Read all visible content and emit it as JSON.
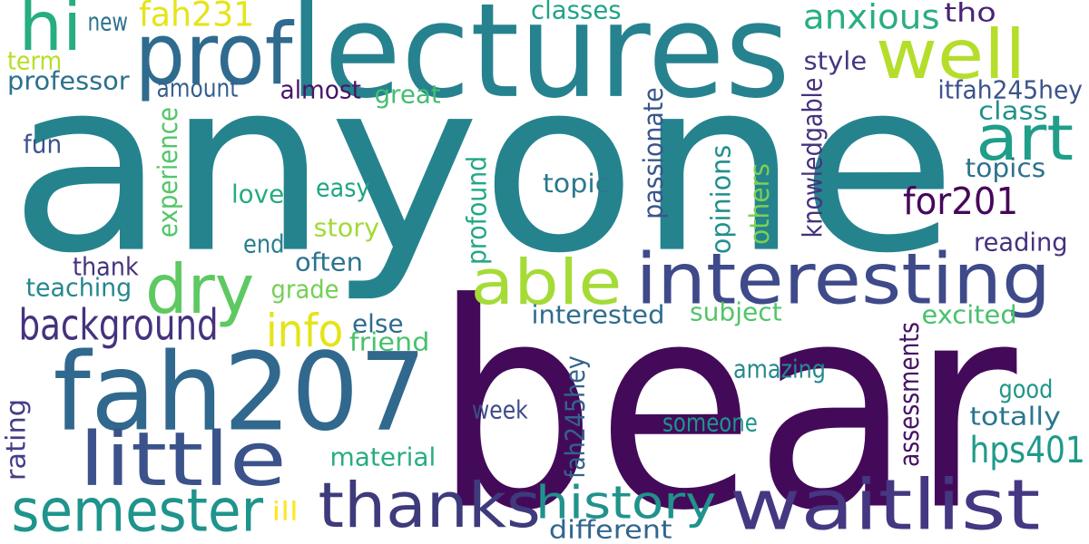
{
  "words": [
    {
      "text": "anyone",
      "color": "#25838e"
    },
    {
      "text": "bear",
      "color": "#440a5a"
    },
    {
      "text": "lectures",
      "color": "#26828e"
    },
    {
      "text": "fah207",
      "color": "#31688e"
    },
    {
      "text": "interesting",
      "color": "#3e4a89"
    },
    {
      "text": "prof",
      "color": "#2f6b8e"
    },
    {
      "text": "waitlist",
      "color": "#453781"
    },
    {
      "text": "thanks",
      "color": "#3e3b7c"
    },
    {
      "text": "little",
      "color": "#3b528b"
    },
    {
      "text": "semester",
      "color": "#1f948c"
    },
    {
      "text": "dry",
      "color": "#5ec962"
    },
    {
      "text": "well",
      "color": "#b5de2b"
    },
    {
      "text": "hi",
      "color": "#27ad81"
    },
    {
      "text": "able",
      "color": "#a5db36"
    },
    {
      "text": "art",
      "color": "#1f9e89"
    },
    {
      "text": "history",
      "color": "#20928c"
    },
    {
      "text": "background",
      "color": "#46327e"
    },
    {
      "text": "anxious",
      "color": "#29af7f"
    },
    {
      "text": "hps401",
      "color": "#1f9a8a"
    },
    {
      "text": "for201",
      "color": "#46075a"
    },
    {
      "text": "info",
      "color": "#e4e419"
    },
    {
      "text": "fah231",
      "color": "#e5e419"
    },
    {
      "text": "topics",
      "color": "#2c728e"
    },
    {
      "text": "itfah245hey",
      "color": "#3b528b"
    },
    {
      "text": "class",
      "color": "#21918c"
    },
    {
      "text": "topic",
      "color": "#2a788e"
    },
    {
      "text": "easy",
      "color": "#21a585"
    },
    {
      "text": "love",
      "color": "#25ab82"
    },
    {
      "text": "story",
      "color": "#a2da37"
    },
    {
      "text": "end",
      "color": "#277f8e"
    },
    {
      "text": "often",
      "color": "#2c738e"
    },
    {
      "text": "thank",
      "color": "#46337e"
    },
    {
      "text": "teaching",
      "color": "#24878e"
    },
    {
      "text": "grade",
      "color": "#75d054"
    },
    {
      "text": "interested",
      "color": "#2f6c8e"
    },
    {
      "text": "subject",
      "color": "#52c569"
    },
    {
      "text": "excited",
      "color": "#4ac16d"
    },
    {
      "text": "else",
      "color": "#2f6c8e"
    },
    {
      "text": "friend",
      "color": "#4ac16d"
    },
    {
      "text": "reading",
      "color": "#46307e"
    },
    {
      "text": "amazing",
      "color": "#23898e"
    },
    {
      "text": "good",
      "color": "#1f978b"
    },
    {
      "text": "totally",
      "color": "#2a768e"
    },
    {
      "text": "week",
      "color": "#3d4d8a"
    },
    {
      "text": "someone",
      "color": "#1f958b"
    },
    {
      "text": "material",
      "color": "#27ad81"
    },
    {
      "text": "different",
      "color": "#32658e"
    },
    {
      "text": "ill",
      "color": "#fde725"
    },
    {
      "text": "style",
      "color": "#453882"
    },
    {
      "text": "tho",
      "color": "#482475"
    },
    {
      "text": "classes",
      "color": "#20a386"
    },
    {
      "text": "new",
      "color": "#2c728e"
    },
    {
      "text": "term",
      "color": "#b8de29"
    },
    {
      "text": "professor",
      "color": "#2c718e"
    },
    {
      "text": "amount",
      "color": "#355f8d"
    },
    {
      "text": "almost",
      "color": "#481668"
    },
    {
      "text": "great",
      "color": "#42be71"
    },
    {
      "text": "fun",
      "color": "#3b528b"
    },
    {
      "text": "experience",
      "color": "#52c569"
    },
    {
      "text": "profound",
      "color": "#22a785"
    },
    {
      "text": "passionate",
      "color": "#39568c"
    },
    {
      "text": "opinions",
      "color": "#21908d"
    },
    {
      "text": "others",
      "color": "#7ad151"
    },
    {
      "text": "knowledgable",
      "color": "#46327e"
    },
    {
      "text": "fah245hey",
      "color": "#33638d"
    },
    {
      "text": "assessments",
      "color": "#471365"
    },
    {
      "text": "rating",
      "color": "#433e85"
    }
  ]
}
